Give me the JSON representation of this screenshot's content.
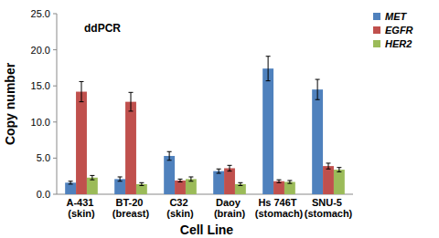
{
  "chart_data": {
    "type": "bar",
    "title": "ddPCR",
    "x_label": "Cell Line",
    "y_label": "Copy number",
    "categories": [
      "A-431 (skin)",
      "BT-20 (breast)",
      "C32 (skin)",
      "Daoy (brain)",
      "Hs 746T (stomach)",
      "SNU-5 (stomach)"
    ],
    "series": [
      {
        "name": "MET",
        "color": "#4f81bd",
        "values": [
          1.6,
          2.1,
          5.3,
          3.2,
          17.4,
          14.5
        ],
        "errors": [
          0.2,
          0.3,
          0.6,
          0.3,
          1.7,
          1.4
        ]
      },
      {
        "name": "EGFR",
        "color": "#c0504d",
        "values": [
          14.2,
          12.8,
          1.9,
          3.6,
          1.8,
          3.9
        ],
        "errors": [
          1.4,
          1.3,
          0.2,
          0.4,
          0.2,
          0.4
        ]
      },
      {
        "name": "HER2",
        "color": "#9bbb59",
        "values": [
          2.3,
          1.4,
          2.1,
          1.4,
          1.7,
          3.4
        ],
        "errors": [
          0.3,
          0.2,
          0.3,
          0.2,
          0.2,
          0.3
        ]
      }
    ],
    "ylim": [
      0,
      25
    ],
    "yticks": [
      {
        "value": 0,
        "label": "0.0"
      },
      {
        "value": 5,
        "label": "5.0"
      },
      {
        "value": 10,
        "label": "10.0"
      },
      {
        "value": 15,
        "label": "15.0"
      },
      {
        "value": 20,
        "label": "20.0"
      },
      {
        "value": 25,
        "label": "25.0"
      }
    ],
    "grid": false,
    "legend": "right"
  }
}
